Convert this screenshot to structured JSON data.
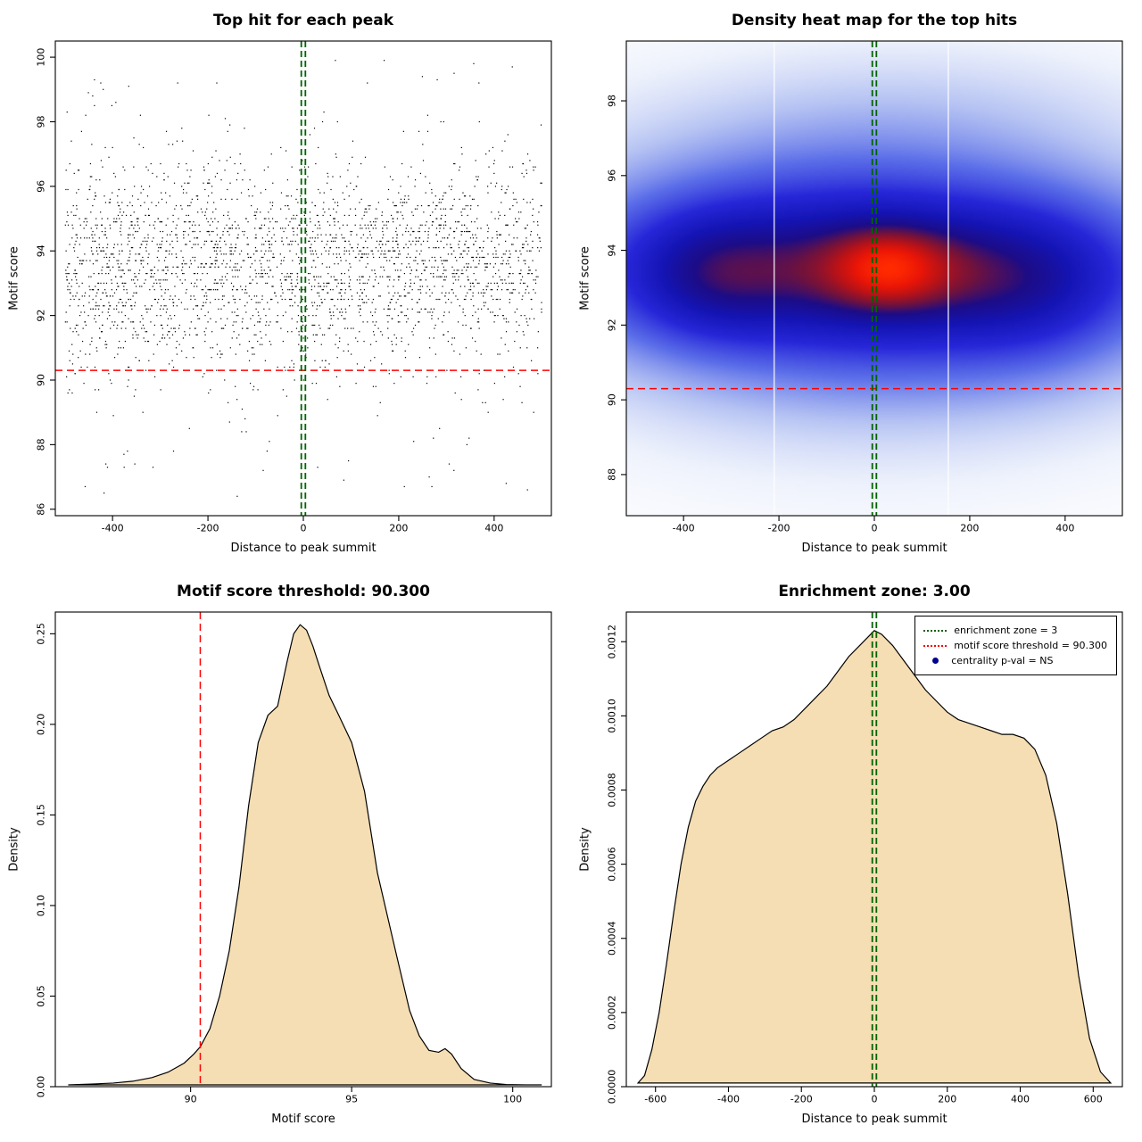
{
  "figure": {
    "background": "#ffffff"
  },
  "chart_data": [
    {
      "id": "top-hit-scatter",
      "type": "scatter",
      "title": "Top hit for each peak",
      "xlabel": "Distance to peak summit",
      "ylabel": "Motif score",
      "xlim": [
        -520,
        520
      ],
      "ylim": [
        85.8,
        100.5
      ],
      "xticks": [
        {
          "v": -400,
          "l": "-400"
        },
        {
          "v": -200,
          "l": "-200"
        },
        {
          "v": 0,
          "l": "0"
        },
        {
          "v": 200,
          "l": "200"
        },
        {
          "v": 400,
          "l": "400"
        }
      ],
      "yticks": [
        {
          "v": 86,
          "l": "86"
        },
        {
          "v": 88,
          "l": "88"
        },
        {
          "v": 90,
          "l": "90"
        },
        {
          "v": 92,
          "l": "92"
        },
        {
          "v": 94,
          "l": "94"
        },
        {
          "v": 96,
          "l": "96"
        },
        {
          "v": 98,
          "l": "98"
        },
        {
          "v": 100,
          "l": "100"
        }
      ],
      "points": {
        "n": 3000,
        "seed": 1337,
        "x_min": -500,
        "x_max": 500,
        "y_mean": 93.55,
        "y_sd": 1.6,
        "y_min": 86.3,
        "y_max": 100.25,
        "quantize": 0.1,
        "low_tail_frac": 0.015,
        "low_tail_min": 86.4,
        "low_tail_max": 91.0,
        "high_tail_frac": 0.012,
        "high_tail_min": 96.5,
        "high_tail_max": 100.2,
        "color": "#000000"
      },
      "center_line": {
        "x": 0,
        "color": "#006400",
        "style": "double-dashed"
      },
      "threshold_line": {
        "y": 90.3,
        "color": "#ff0000",
        "style": "dashed"
      }
    },
    {
      "id": "density-heatmap",
      "type": "heatmap",
      "title": "Density heat map for the top hits",
      "xlabel": "Distance to peak summit",
      "ylabel": "Motif score",
      "xlim": [
        -520,
        520
      ],
      "ylim": [
        86.9,
        99.6
      ],
      "xticks": [
        {
          "v": -400,
          "l": "-400"
        },
        {
          "v": -200,
          "l": "-200"
        },
        {
          "v": 0,
          "l": "0"
        },
        {
          "v": 200,
          "l": "200"
        },
        {
          "v": 400,
          "l": "400"
        }
      ],
      "yticks": [
        {
          "v": 88,
          "l": "88"
        },
        {
          "v": 90,
          "l": "90"
        },
        {
          "v": 92,
          "l": "92"
        },
        {
          "v": 94,
          "l": "94"
        },
        {
          "v": 96,
          "l": "96"
        },
        {
          "v": 98,
          "l": "98"
        }
      ],
      "gamma": 0.8,
      "blobs": [
        {
          "x": 0,
          "y": 93.45,
          "sx": 430,
          "sy": 2.9,
          "w": 0.45
        },
        {
          "x": -30,
          "y": 93.5,
          "sx": 420,
          "sy": 1.55,
          "w": 1.3
        },
        {
          "x": -340,
          "y": 93.35,
          "sx": 115,
          "sy": 1.15,
          "w": 0.5
        },
        {
          "x": 330,
          "y": 93.05,
          "sx": 135,
          "sy": 1.3,
          "w": 0.45
        },
        {
          "x": 30,
          "y": 93.5,
          "sx": 110,
          "sy": 0.85,
          "w": 0.65
        },
        {
          "x": 30,
          "y": 93.55,
          "sx": 60,
          "sy": 0.55,
          "w": 0.35
        },
        {
          "x": -60,
          "y": 96.4,
          "sx": 340,
          "sy": 1.4,
          "w": 0.13
        },
        {
          "x": 150,
          "y": 97.9,
          "sx": 300,
          "sy": 1.1,
          "w": 0.06
        },
        {
          "x": 80,
          "y": 90.9,
          "sx": 340,
          "sy": 1.2,
          "w": 0.13
        }
      ],
      "ramp": [
        [
          0,
          "#ffffff"
        ],
        [
          0.05,
          "#eef2fc"
        ],
        [
          0.15,
          "#b7c4f3"
        ],
        [
          0.3,
          "#5b6ee8"
        ],
        [
          0.45,
          "#2626d8"
        ],
        [
          0.58,
          "#1414b4"
        ],
        [
          0.68,
          "#1c0c86"
        ],
        [
          0.76,
          "#70123c"
        ],
        [
          0.84,
          "#b61218"
        ],
        [
          0.92,
          "#ea1506"
        ],
        [
          1,
          "#ff2a00"
        ]
      ],
      "gap_lines_x": [
        -210,
        155
      ],
      "center_line": {
        "x": 0,
        "color": "#006400",
        "style": "double-dashed"
      },
      "threshold_line": {
        "y": 90.3,
        "color": "#ff0000",
        "style": "dashed"
      }
    },
    {
      "id": "motif-score-density",
      "type": "density",
      "title": "Motif score threshold: 90.300",
      "xlabel": "Motif score",
      "ylabel": "Density",
      "threshold_value": "90.300",
      "xlim": [
        85.8,
        101.2
      ],
      "ylim": [
        0,
        0.262
      ],
      "xticks": [
        {
          "v": 90,
          "l": "90"
        },
        {
          "v": 95,
          "l": "95"
        },
        {
          "v": 100,
          "l": "100"
        }
      ],
      "yticks": [
        {
          "v": 0,
          "l": "0.00"
        },
        {
          "v": 0.05,
          "l": "0.05"
        },
        {
          "v": 0.1,
          "l": "0.10"
        },
        {
          "v": 0.15,
          "l": "0.15"
        },
        {
          "v": 0.2,
          "l": "0.20"
        },
        {
          "v": 0.25,
          "l": "0.25"
        }
      ],
      "fill": "#f5deb3",
      "line_color": "#000000",
      "curve": {
        "x": [
          86.2,
          87,
          87.6,
          88.2,
          88.8,
          89.3,
          89.8,
          90.1,
          90.3,
          90.6,
          90.9,
          91.2,
          91.5,
          91.8,
          92.1,
          92.4,
          92.7,
          93.0,
          93.2,
          93.4,
          93.6,
          93.8,
          94.0,
          94.3,
          94.6,
          95.0,
          95.4,
          95.8,
          96.1,
          96.4,
          96.8,
          97.1,
          97.4,
          97.7,
          97.9,
          98.1,
          98.4,
          98.8,
          99.3,
          99.8,
          100.4,
          100.9
        ],
        "y": [
          0.001,
          0.0015,
          0.002,
          0.003,
          0.005,
          0.008,
          0.013,
          0.018,
          0.022,
          0.032,
          0.05,
          0.075,
          0.11,
          0.155,
          0.19,
          0.205,
          0.21,
          0.235,
          0.25,
          0.255,
          0.252,
          0.243,
          0.232,
          0.216,
          0.205,
          0.19,
          0.163,
          0.118,
          0.095,
          0.072,
          0.042,
          0.028,
          0.02,
          0.019,
          0.021,
          0.018,
          0.01,
          0.004,
          0.002,
          0.0012,
          0.001,
          0.001
        ]
      },
      "threshold_line": {
        "x": 90.3,
        "color": "#ff0000",
        "style": "dashed"
      }
    },
    {
      "id": "summit-distance-density",
      "type": "density",
      "title": "Enrichment zone: 3.00",
      "xlabel": "Distance to peak summit",
      "ylabel": "Density",
      "enrichment_zone_value": "3.00",
      "xlim": [
        -680,
        680
      ],
      "ylim": [
        0,
        0.00128
      ],
      "xticks": [
        {
          "v": -600,
          "l": "-600"
        },
        {
          "v": -400,
          "l": "-400"
        },
        {
          "v": -200,
          "l": "-200"
        },
        {
          "v": 0,
          "l": "0"
        },
        {
          "v": 200,
          "l": "200"
        },
        {
          "v": 400,
          "l": "400"
        },
        {
          "v": 600,
          "l": "600"
        }
      ],
      "yticks": [
        {
          "v": 0,
          "l": "0.0000"
        },
        {
          "v": 0.0002,
          "l": "0.0002"
        },
        {
          "v": 0.0004,
          "l": "0.0004"
        },
        {
          "v": 0.0006,
          "l": "0.0006"
        },
        {
          "v": 0.0008,
          "l": "0.0008"
        },
        {
          "v": 0.001,
          "l": "0.0010"
        },
        {
          "v": 0.0012,
          "l": "0.0012"
        }
      ],
      "fill": "#f5deb3",
      "line_color": "#000000",
      "curve": {
        "x": [
          -648,
          -630,
          -610,
          -590,
          -570,
          -550,
          -530,
          -510,
          -490,
          -470,
          -450,
          -430,
          -400,
          -370,
          -340,
          -310,
          -280,
          -250,
          -220,
          -190,
          -160,
          -130,
          -100,
          -70,
          -40,
          -10,
          0,
          20,
          50,
          80,
          110,
          140,
          170,
          200,
          230,
          260,
          290,
          320,
          350,
          380,
          410,
          440,
          470,
          500,
          530,
          560,
          590,
          620,
          648
        ],
        "y": [
          1e-05,
          3e-05,
          0.0001,
          0.0002,
          0.00033,
          0.00047,
          0.0006,
          0.0007,
          0.00077,
          0.00081,
          0.00084,
          0.00086,
          0.00088,
          0.0009,
          0.00092,
          0.00094,
          0.00096,
          0.00097,
          0.00099,
          0.00102,
          0.00105,
          0.00108,
          0.00112,
          0.00116,
          0.00119,
          0.00122,
          0.00123,
          0.00122,
          0.00119,
          0.00115,
          0.00111,
          0.00107,
          0.00104,
          0.00101,
          0.00099,
          0.00098,
          0.00097,
          0.00096,
          0.00095,
          0.00095,
          0.00094,
          0.00091,
          0.00084,
          0.00071,
          0.00052,
          0.0003,
          0.00013,
          4e-05,
          1e-05
        ]
      },
      "center_line": {
        "x": 0,
        "color": "#006400",
        "style": "double-dashed"
      },
      "legend": {
        "items": [
          {
            "label": "enrichment zone = 3",
            "color": "#006400",
            "style": "dotted-line"
          },
          {
            "label": "motif score threshold = 90.300",
            "color": "#ff0000",
            "style": "dotted-line"
          },
          {
            "label": "centrality p-val = NS",
            "color": "#00008b",
            "style": "point"
          }
        ]
      }
    }
  ]
}
